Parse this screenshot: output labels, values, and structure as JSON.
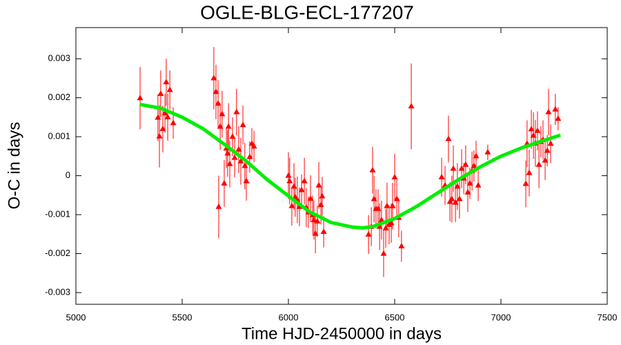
{
  "chart_data": {
    "type": "scatter",
    "title": "OGLE-BLG-ECL-177207",
    "xlabel": "Time HJD-2450000 in days",
    "ylabel": "O-C in days",
    "xlim": [
      5000,
      7500
    ],
    "ylim": [
      -0.0033,
      0.0038
    ],
    "xticks": [
      5000,
      5500,
      6000,
      6500,
      7000,
      7500
    ],
    "yticks": [
      -0.003,
      -0.002,
      -0.001,
      0,
      0.001,
      0.002,
      0.003
    ],
    "series": [
      {
        "color": "#ff0000",
        "x": [
          5302,
          5386,
          5393,
          5399,
          5409,
          5419,
          5425,
          5432,
          5442,
          5458,
          5649,
          5659,
          5669,
          5672,
          5679,
          5688,
          5698,
          5708,
          5714,
          5718,
          5724,
          5737,
          5747,
          5756,
          5766,
          5776,
          5786,
          5795,
          5802,
          5818,
          5828,
          5838,
          6000,
          6006,
          6016,
          6026,
          6032,
          6042,
          6052,
          6062,
          6075,
          6084,
          6094,
          6104,
          6114,
          6120,
          6127,
          6136,
          6143,
          6153,
          6159,
          6166,
          6377,
          6390,
          6396,
          6403,
          6412,
          6422,
          6429,
          6438,
          6448,
          6458,
          6464,
          6474,
          6484,
          6490,
          6500,
          6510,
          6519,
          6532,
          6578,
          6721,
          6737,
          6753,
          6760,
          6769,
          6776,
          6786,
          6795,
          6805,
          6815,
          6825,
          6834,
          6844,
          6854,
          6864,
          6873,
          6883,
          6893,
          6938,
          7117,
          7123,
          7133,
          7143,
          7153,
          7162,
          7172,
          7179,
          7188,
          7198,
          7208,
          7218,
          7224,
          7234,
          7256,
          7269
        ],
        "values": [
          0.00199,
          0.00149,
          0.00101,
          0.0021,
          0.0012,
          0.0016,
          0.0024,
          0.0015,
          0.0022,
          0.00135,
          0.0025,
          0.00215,
          0.00185,
          -0.0008,
          0.00126,
          0.00158,
          -0.0002,
          0.0007,
          0.00057,
          0.00126,
          0.0003,
          0.001,
          0.00046,
          0.00163,
          0.00067,
          0.00037,
          0.0013,
          0.00025,
          -0.00014,
          0.00048,
          0.00082,
          0.00075,
          0,
          -0.00014,
          -0.00078,
          -0.00028,
          -0.00055,
          -0.00062,
          -0.0008,
          -0.00037,
          -0.00014,
          -0.00082,
          -0.00094,
          -0.00059,
          -0.00101,
          -0.00114,
          -0.00149,
          -0.00117,
          -0.00025,
          -0.00075,
          -0.00053,
          -0.00144,
          -0.00151,
          -0.00131,
          0.00014,
          -0.0006,
          -0.00085,
          -0.00085,
          -0.00131,
          -0.00114,
          -0.002,
          -0.00135,
          -0.00078,
          -0.00126,
          -0.00122,
          -0.00078,
          -4e-05,
          -0.0006,
          -0.00108,
          -0.00181,
          0.00178,
          -4e-05,
          -0.00025,
          0.00094,
          -0.00067,
          -0.0006,
          0.00018,
          -0.00069,
          -0.00028,
          -0.0006,
          0.00018,
          -7e-05,
          0.00028,
          -0.00043,
          -0.0002,
          0.00012,
          0.00025,
          0.0005,
          -0.00025,
          0.0006,
          -0.00021,
          0.00082,
          7e-05,
          0.00119,
          0.00103,
          0.00083,
          0.00115,
          0.00028,
          0.00087,
          0.00092,
          0.00039,
          0.00064,
          0.00163,
          0.00082,
          0.0017,
          0.00146
        ],
        "errors": [
          0.0008,
          0.0006,
          0.0008,
          0.0006,
          0.0006,
          0.0005,
          0.0006,
          0.0006,
          0.0005,
          0.0004,
          0.0008,
          0.0007,
          0.0006,
          0.0008,
          0.0006,
          0.0006,
          0.0006,
          0.0005,
          0.0006,
          0.0006,
          0.0006,
          0.0005,
          0.0005,
          0.0006,
          0.0006,
          0.0006,
          0.0005,
          0.0006,
          0.0005,
          0.0004,
          0.0004,
          0.0004,
          0.0006,
          0.0006,
          0.0005,
          0.0006,
          0.0005,
          0.0006,
          0.0005,
          0.0004,
          0.0006,
          0.0005,
          0.0004,
          0.0006,
          0.0005,
          0.0005,
          0.0005,
          0.0004,
          0.0006,
          0.0005,
          0.0005,
          0.0004,
          0.0005,
          0.0005,
          0.0006,
          0.0006,
          0.0005,
          0.0005,
          0.0006,
          0.0005,
          0.0006,
          0.0005,
          0.0006,
          0.0005,
          0.0005,
          0.0006,
          0.0006,
          0.0005,
          0.0005,
          0.0004,
          0.0011,
          0.0005,
          0.0005,
          0.0006,
          0.0005,
          0.0006,
          0.0006,
          0.0005,
          0.0006,
          0.0005,
          0.0005,
          0.0004,
          0.0005,
          0.0005,
          0.0004,
          0.0005,
          0.0004,
          0.0004,
          0.0004,
          0.0002,
          0.0006,
          0.0006,
          0.0006,
          0.0005,
          0.0006,
          0.0006,
          0.0005,
          0.0006,
          0.0004,
          0.0005,
          0.0005,
          0.0004,
          0.0006,
          0.0005,
          0.0004,
          0.0003
        ]
      },
      {
        "color": "#00ee00",
        "x": [
          5300,
          5400,
          5500,
          5600,
          5700,
          5800,
          5900,
          6000,
          6100,
          6200,
          6300,
          6350,
          6400,
          6500,
          6600,
          6700,
          6800,
          6900,
          7000,
          7100,
          7200,
          7280
        ],
        "values": [
          0.00183,
          0.00173,
          0.0015,
          0.0012,
          0.0008,
          0.00038,
          -0.0001,
          -0.00052,
          -0.00093,
          -0.0012,
          -0.00132,
          -0.00134,
          -0.0013,
          -0.0011,
          -0.0008,
          -0.00045,
          -0.0001,
          0.00022,
          0.0005,
          0.00072,
          0.0009,
          0.00104
        ]
      }
    ]
  }
}
